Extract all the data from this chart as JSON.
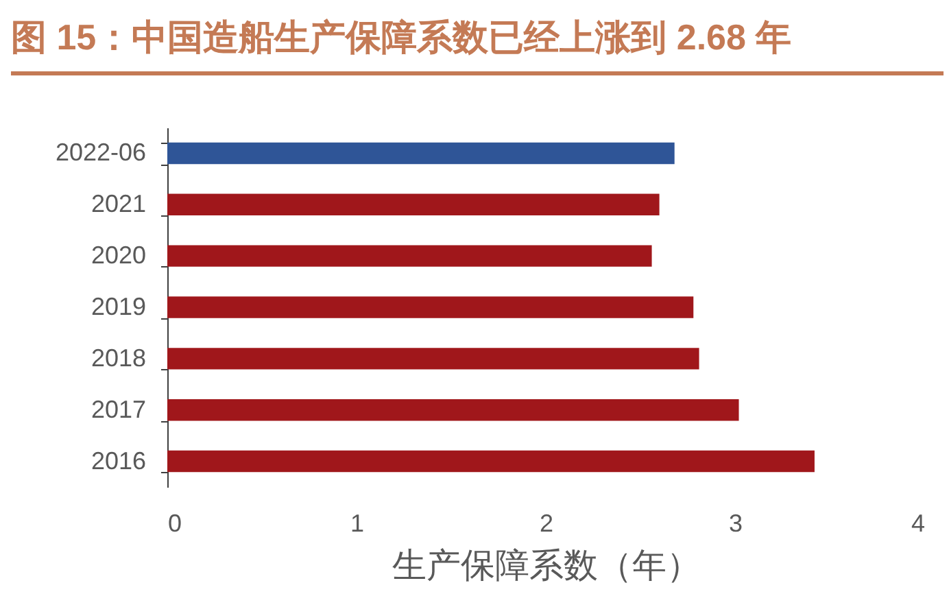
{
  "chart_data": {
    "type": "bar",
    "orientation": "horizontal",
    "title": "图 15：中国造船生产保障系数已经上涨到 2.68 年",
    "xlabel": "生产保障系数（年）",
    "categories": [
      "2022-06",
      "2021",
      "2020",
      "2019",
      "2018",
      "2017",
      "2016"
    ],
    "values": [
      2.68,
      2.6,
      2.56,
      2.78,
      2.81,
      3.02,
      3.42
    ],
    "colors": [
      "#2f5597",
      "#a0171b",
      "#a0171b",
      "#a0171b",
      "#a0171b",
      "#a0171b",
      "#a0171b"
    ],
    "xlim": [
      0,
      4
    ],
    "xticks": [
      0,
      1,
      2,
      3,
      4
    ]
  }
}
